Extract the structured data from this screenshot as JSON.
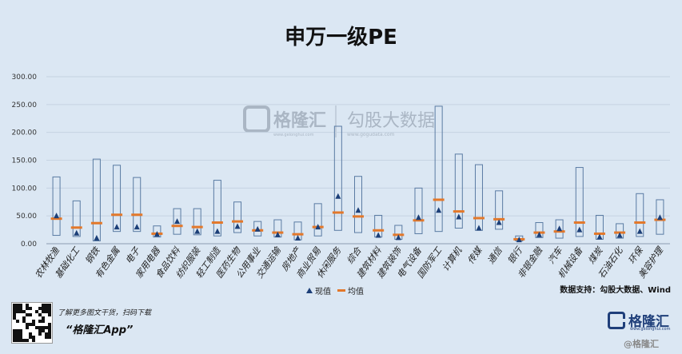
{
  "title": "申万一级PE",
  "legend": {
    "current": "现值",
    "mean": "均值"
  },
  "source": "数据支持：勾股大数据、Wind",
  "watermark": {
    "brand": "格隆汇",
    "site": "www.gelonghui.com",
    "brand2": "勾股大数据",
    "site2": "www.gogudata.com"
  },
  "footer": {
    "promo_line": "了解更多图文干货，扫码下载",
    "app_name": "“格隆汇App”",
    "logo_text": "格隆汇",
    "logo_sub": "www.gelonghui.com",
    "watermark": "@格隆汇"
  },
  "colors": {
    "background": "#dbe7f3",
    "box": "#5a7ba3",
    "current": "#1c3f78",
    "mean": "#e3782a",
    "grid": "#c6d3e2"
  },
  "chart_data": {
    "type": "box-range",
    "ylim": [
      0,
      300
    ],
    "yticks": [
      "0.00",
      "50.00",
      "100.00",
      "150.00",
      "200.00",
      "250.00",
      "300.00"
    ],
    "categories": [
      "农林牧渔",
      "基础化工",
      "钢铁",
      "有色金属",
      "电子",
      "家用电器",
      "食品饮料",
      "纺织服装",
      "轻工制造",
      "医药生物",
      "公用事业",
      "交通运输",
      "房地产",
      "商业贸易",
      "休闲服务",
      "综合",
      "建筑材料",
      "建筑装饰",
      "电气设备",
      "国防军工",
      "计算机",
      "传媒",
      "通信",
      "银行",
      "非银金融",
      "汽车",
      "机械设备",
      "煤炭",
      "石油石化",
      "环保",
      "美容护理"
    ],
    "series": [
      {
        "name": "max",
        "values": [
          120,
          77,
          152,
          141,
          119,
          32,
          63,
          63,
          114,
          75,
          40,
          43,
          39,
          72,
          211,
          121,
          51,
          33,
          100,
          247,
          161,
          142,
          95,
          14,
          38,
          43,
          137,
          51,
          36,
          90,
          79
        ]
      },
      {
        "name": "min",
        "values": [
          15,
          13,
          5,
          22,
          22,
          12,
          17,
          16,
          14,
          20,
          14,
          12,
          7,
          14,
          24,
          20,
          12,
          8,
          18,
          22,
          28,
          24,
          26,
          5,
          11,
          10,
          13,
          8,
          10,
          13,
          17
        ]
      },
      {
        "name": "现值",
        "values": [
          50,
          19,
          10,
          30,
          30,
          17,
          40,
          22,
          22,
          31,
          26,
          16,
          10,
          30,
          85,
          60,
          15,
          11,
          47,
          60,
          48,
          28,
          38,
          7,
          16,
          27,
          25,
          12,
          15,
          22,
          47
        ]
      },
      {
        "name": "均值",
        "values": [
          45,
          29,
          37,
          52,
          52,
          18,
          32,
          30,
          38,
          40,
          24,
          20,
          17,
          30,
          56,
          49,
          24,
          16,
          42,
          79,
          58,
          46,
          44,
          8,
          20,
          22,
          38,
          18,
          20,
          38,
          43
        ]
      }
    ]
  }
}
